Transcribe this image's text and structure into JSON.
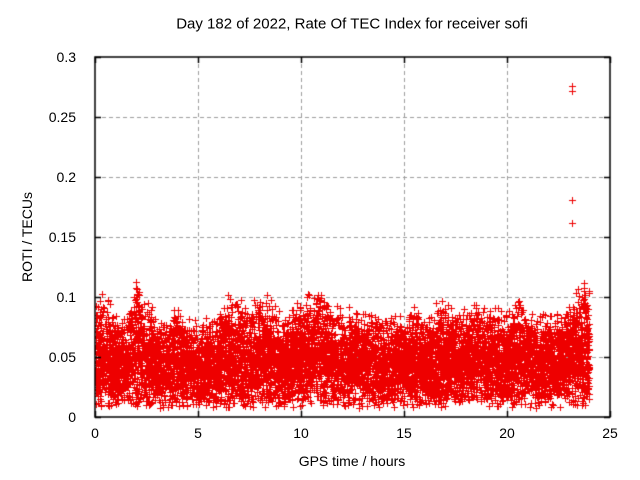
{
  "chart_data": {
    "type": "scatter",
    "title": "Day 182 of 2022, Rate Of TEC Index for receiver sofi",
    "xlabel": "GPS time / hours",
    "ylabel": "ROTI / TECUs",
    "xlim": [
      0,
      25
    ],
    "ylim": [
      0,
      0.3
    ],
    "xticks": [
      [
        0,
        "0"
      ],
      [
        5,
        "5"
      ],
      [
        10,
        "10"
      ],
      [
        15,
        "15"
      ],
      [
        20,
        "20"
      ],
      [
        25,
        "25"
      ]
    ],
    "yticks": [
      [
        0,
        "0"
      ],
      [
        0.05,
        "0.05"
      ],
      [
        0.1,
        "0.1"
      ],
      [
        0.15,
        "0.15"
      ],
      [
        0.2,
        "0.2"
      ],
      [
        0.25,
        "0.25"
      ],
      [
        0.3,
        "0.3"
      ]
    ],
    "grid": true,
    "legend": "none",
    "marker": "plus",
    "marker_size_px": 7,
    "colors": {
      "points": "#ee0000",
      "grid": "#9e9e9e",
      "border": "#000000",
      "background": "#ffffff",
      "text": "#000000"
    },
    "series": [
      {
        "name": "ROTI",
        "description": "dense band of ~1-minute ROTI values for all visible GPS satellites, 0-24 h",
        "band": {
          "t_start": 0,
          "t_end": 24,
          "points": 9000,
          "seed": 182,
          "y_min": 0.007,
          "envelope_t": [
            0,
            0.5,
            1,
            1.5,
            2,
            2.5,
            3,
            3.5,
            4,
            4.5,
            5,
            5.5,
            6,
            6.5,
            7,
            7.5,
            8,
            8.5,
            9,
            9.5,
            10,
            10.5,
            11,
            11.5,
            12,
            12.5,
            13,
            13.5,
            14,
            14.5,
            15,
            15.5,
            16,
            16.5,
            17,
            17.5,
            18,
            18.5,
            19,
            19.5,
            20,
            20.5,
            21,
            21.5,
            22,
            22.5,
            23,
            23.5,
            24
          ],
          "envelope_max": [
            0.095,
            0.108,
            0.085,
            0.09,
            0.115,
            0.102,
            0.088,
            0.082,
            0.098,
            0.09,
            0.078,
            0.088,
            0.092,
            0.106,
            0.1,
            0.094,
            0.104,
            0.106,
            0.086,
            0.09,
            0.103,
            0.108,
            0.112,
            0.096,
            0.094,
            0.096,
            0.09,
            0.095,
            0.088,
            0.085,
            0.09,
            0.095,
            0.086,
            0.1,
            0.105,
            0.09,
            0.095,
            0.108,
            0.09,
            0.095,
            0.09,
            0.107,
            0.095,
            0.086,
            0.09,
            0.091,
            0.1,
            0.112,
            0.116
          ]
        },
        "outliers": [
          [
            23.15,
            0.276
          ],
          [
            23.15,
            0.2715
          ],
          [
            23.15,
            0.181
          ],
          [
            23.15,
            0.162
          ]
        ]
      }
    ]
  }
}
